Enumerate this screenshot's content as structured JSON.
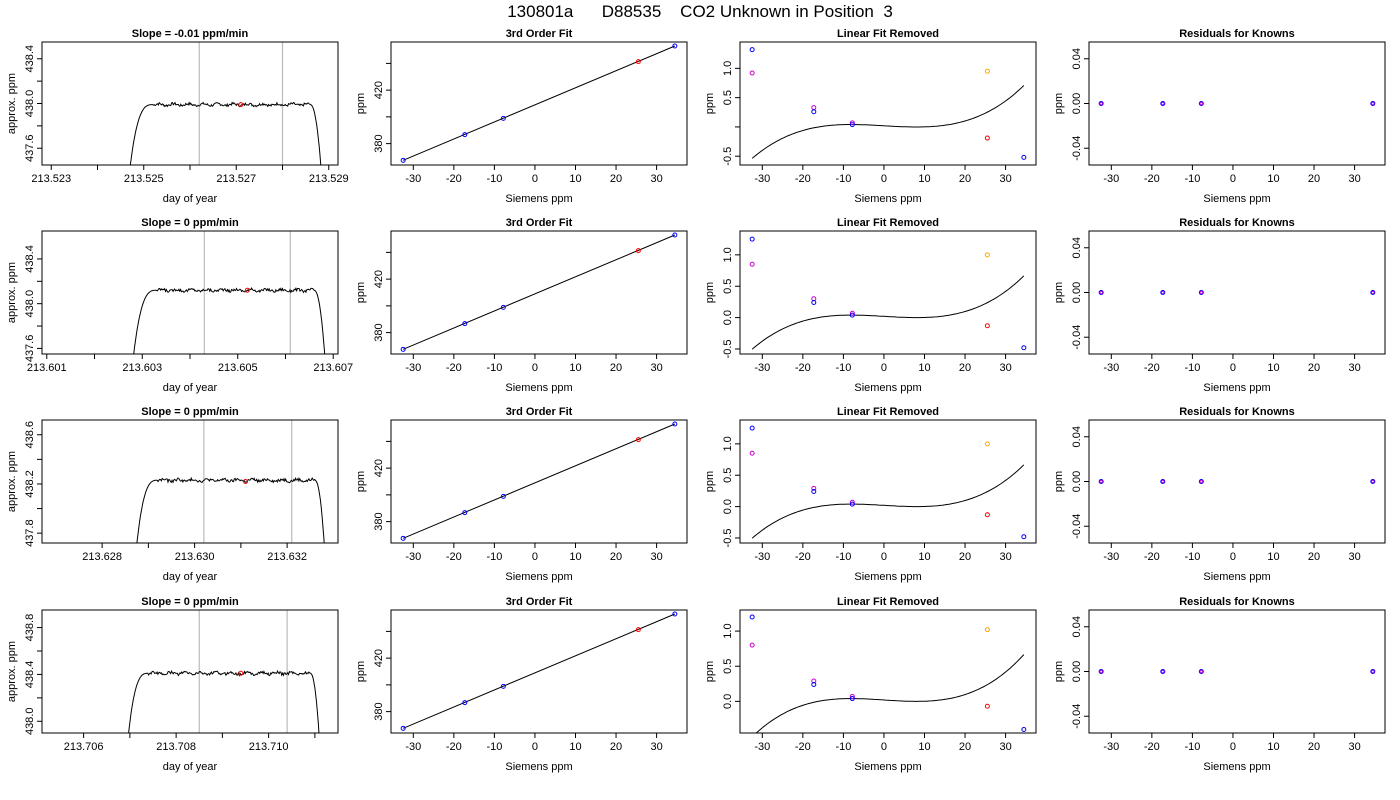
{
  "figure": {
    "title": "130801a      D88535    CO2 Unknown in Position  3"
  },
  "colors": {
    "line": "#000000",
    "fit_points_known": "#0000ff",
    "fit_points_unknown": "#ff0000",
    "raw_points": "#cc00cc",
    "unknown_marker": "#ffa500",
    "window_lines": "#bbbbbb"
  },
  "chart_data": [
    {
      "type": "line",
      "row": 0,
      "col": 0,
      "title": "Slope =  -0.01  ppm/min",
      "xlabel": "day of year",
      "ylabel": "approx. ppm",
      "xlim": [
        213.5228,
        213.5292
      ],
      "ylim": [
        437.45,
        438.55
      ],
      "xticks": [
        213.523,
        213.524,
        213.525,
        213.526,
        213.527,
        213.528,
        213.529
      ],
      "xtick_labels": [
        "213.523",
        "",
        "213.525",
        "",
        "213.527",
        "",
        "213.529"
      ],
      "yticks": [
        437.6,
        437.8,
        438.0,
        438.2,
        438.4
      ],
      "ytick_labels": [
        "437.6",
        "",
        "438.0",
        "",
        "438.4"
      ],
      "trace": {
        "x_start": 213.5246,
        "x_rise": 213.5252,
        "x_end": 213.5286,
        "x_fall": 213.5289,
        "y_base": 437.0,
        "y_plateau": 437.99,
        "noise": 0.012
      },
      "vlines": [
        213.5262,
        213.528
      ],
      "marker": {
        "x": 213.5271,
        "y": 437.99
      }
    },
    {
      "type": "scatter",
      "row": 0,
      "col": 1,
      "title": "3rd Order Fit",
      "xlabel": "Siemens ppm",
      "ylabel": "ppm",
      "xlim": [
        -35.5,
        37.5
      ],
      "ylim": [
        364,
        456
      ],
      "xticks": [
        -30,
        -20,
        -10,
        0,
        10,
        20,
        30
      ],
      "yticks": [
        380,
        400,
        420,
        440
      ],
      "ytick_labels": [
        "380",
        "",
        "420",
        ""
      ],
      "line": [
        [
          -32.5,
          367.5
        ],
        [
          34.5,
          453
        ]
      ],
      "known_points": [
        [
          -32.5,
          367.5
        ],
        [
          -17.3,
          386.7
        ],
        [
          -7.8,
          398.9
        ],
        [
          34.5,
          453
        ]
      ],
      "unknown_points": [
        [
          25.5,
          441.3
        ]
      ]
    },
    {
      "type": "scatter",
      "row": 0,
      "col": 2,
      "title": "Linear Fit Removed",
      "xlabel": "Siemens ppm",
      "ylabel": "ppm",
      "xlim": [
        -35.5,
        37.5
      ],
      "ylim": [
        -0.65,
        1.45
      ],
      "xticks": [
        -30,
        -20,
        -10,
        0,
        10,
        20,
        30
      ],
      "yticks": [
        -0.5,
        0.0,
        0.5,
        1.0
      ],
      "ytick_labels": [
        "-0.5",
        "",
        "0.5",
        "1.0"
      ],
      "curve_coeffs": [
        0.02,
        -0.00393,
        1e-06,
        2e-05
      ],
      "curve_range": [
        -32.5,
        34.5
      ],
      "known_points": [
        [
          -32.5,
          1.32
        ],
        [
          -17.3,
          0.26
        ],
        [
          -7.8,
          0.04
        ],
        [
          34.5,
          -0.52
        ]
      ],
      "raw_points": [
        [
          -32.5,
          0.92
        ],
        [
          -17.3,
          0.33
        ],
        [
          -7.8,
          0.07
        ]
      ],
      "unknown_points": [
        [
          25.5,
          -0.19
        ]
      ],
      "unknown_marker": [
        25.5,
        0.95
      ]
    },
    {
      "type": "scatter",
      "row": 0,
      "col": 3,
      "title": "Residuals for Knowns",
      "xlabel": "Siemens ppm",
      "ylabel": "ppm",
      "xlim": [
        -35.5,
        37.5
      ],
      "ylim": [
        -0.055,
        0.055
      ],
      "xticks": [
        -30,
        -20,
        -10,
        0,
        10,
        20,
        30
      ],
      "yticks": [
        -0.04,
        0.0,
        0.04
      ],
      "ytick_labels": [
        "-0.04",
        "0.00",
        "0.04"
      ],
      "points": [
        [
          -32.5,
          0
        ],
        [
          -17.3,
          0
        ],
        [
          -7.8,
          0
        ],
        [
          34.5,
          0
        ]
      ]
    },
    {
      "type": "line",
      "row": 1,
      "col": 0,
      "title": "Slope =  0  ppm/min",
      "xlabel": "day of year",
      "ylabel": "approx. ppm",
      "xlim": [
        213.6009,
        213.6071
      ],
      "ylim": [
        437.55,
        438.65
      ],
      "xticks": [
        213.601,
        213.602,
        213.603,
        213.604,
        213.605,
        213.606,
        213.607
      ],
      "xtick_labels": [
        "213.601",
        "",
        "213.603",
        "",
        "213.605",
        "",
        "213.607"
      ],
      "yticks": [
        437.6,
        437.8,
        438.0,
        438.2,
        438.4
      ],
      "ytick_labels": [
        "437.6",
        "",
        "438.0",
        "",
        "438.4"
      ],
      "trace": {
        "x_start": 213.6027,
        "x_rise": 213.6033,
        "x_end": 213.6066,
        "x_fall": 213.6069,
        "y_base": 437.0,
        "y_plateau": 438.12,
        "noise": 0.012
      },
      "vlines": [
        213.6043,
        213.6061
      ],
      "marker": {
        "x": 213.6052,
        "y": 438.12
      }
    },
    {
      "type": "scatter",
      "row": 1,
      "col": 1,
      "title": "3rd Order Fit",
      "xlabel": "Siemens ppm",
      "ylabel": "ppm",
      "xlim": [
        -35.5,
        37.5
      ],
      "ylim": [
        364,
        456
      ],
      "xticks": [
        -30,
        -20,
        -10,
        0,
        10,
        20,
        30
      ],
      "yticks": [
        380,
        400,
        420,
        440
      ],
      "ytick_labels": [
        "380",
        "",
        "420",
        ""
      ],
      "line": [
        [
          -32.5,
          367.5
        ],
        [
          34.5,
          453
        ]
      ],
      "known_points": [
        [
          -32.5,
          367.5
        ],
        [
          -17.3,
          386.7
        ],
        [
          -7.8,
          398.9
        ],
        [
          34.5,
          453
        ]
      ],
      "unknown_points": [
        [
          25.5,
          441.3
        ]
      ]
    },
    {
      "type": "scatter",
      "row": 1,
      "col": 2,
      "title": "Linear Fit Removed",
      "xlabel": "Siemens ppm",
      "ylabel": "ppm",
      "xlim": [
        -35.5,
        37.5
      ],
      "ylim": [
        -0.58,
        1.38
      ],
      "xticks": [
        -30,
        -20,
        -10,
        0,
        10,
        20,
        30
      ],
      "yticks": [
        -0.5,
        0.0,
        0.5,
        1.0
      ],
      "ytick_labels": [
        "-0.5",
        "0.0",
        "0.5",
        "1.0"
      ],
      "curve_coeffs": [
        0.02,
        -0.0037,
        1e-06,
        1.88e-05
      ],
      "curve_range": [
        -32.5,
        34.5
      ],
      "known_points": [
        [
          -32.5,
          1.25
        ],
        [
          -17.3,
          0.24
        ],
        [
          -7.8,
          0.04
        ],
        [
          34.5,
          -0.48
        ]
      ],
      "raw_points": [
        [
          -32.5,
          0.85
        ],
        [
          -17.3,
          0.3
        ],
        [
          -7.8,
          0.07
        ]
      ],
      "unknown_points": [
        [
          25.5,
          -0.13
        ]
      ],
      "unknown_marker": [
        25.5,
        1.0
      ]
    },
    {
      "type": "scatter",
      "row": 1,
      "col": 3,
      "title": "Residuals for Knowns",
      "xlabel": "Siemens ppm",
      "ylabel": "ppm",
      "xlim": [
        -35.5,
        37.5
      ],
      "ylim": [
        -0.055,
        0.055
      ],
      "xticks": [
        -30,
        -20,
        -10,
        0,
        10,
        20,
        30
      ],
      "yticks": [
        -0.04,
        0.0,
        0.04
      ],
      "ytick_labels": [
        "-0.04",
        "0.00",
        "0.04"
      ],
      "points": [
        [
          -32.5,
          0
        ],
        [
          -17.3,
          0
        ],
        [
          -7.8,
          0
        ],
        [
          34.5,
          0
        ]
      ]
    },
    {
      "type": "line",
      "row": 2,
      "col": 0,
      "title": "Slope =  0  ppm/min",
      "xlabel": "day of year",
      "ylabel": "approx. ppm",
      "xlim": [
        213.6267,
        213.6331
      ],
      "ylim": [
        437.72,
        438.72
      ],
      "xticks": [
        213.628,
        213.629,
        213.63,
        213.631,
        213.632
      ],
      "xtick_labels": [
        "213.628",
        "",
        "213.630",
        "",
        "213.632"
      ],
      "yticks": [
        437.8,
        438.0,
        438.2,
        438.4,
        438.6
      ],
      "ytick_labels": [
        "437.8",
        "",
        "438.2",
        "",
        "438.6"
      ],
      "trace": {
        "x_start": 213.6286,
        "x_rise": 213.6292,
        "x_end": 213.6326,
        "x_fall": 213.6329,
        "y_base": 437.0,
        "y_plateau": 438.23,
        "noise": 0.012
      },
      "vlines": [
        213.6302,
        213.6321
      ],
      "marker": {
        "x": 213.6311,
        "y": 438.22
      }
    },
    {
      "type": "scatter",
      "row": 2,
      "col": 1,
      "title": "3rd Order Fit",
      "xlabel": "Siemens ppm",
      "ylabel": "ppm",
      "xlim": [
        -35.5,
        37.5
      ],
      "ylim": [
        364,
        456
      ],
      "xticks": [
        -30,
        -20,
        -10,
        0,
        10,
        20,
        30
      ],
      "yticks": [
        380,
        400,
        420,
        440
      ],
      "ytick_labels": [
        "380",
        "",
        "420",
        ""
      ],
      "line": [
        [
          -32.5,
          367.5
        ],
        [
          34.5,
          453
        ]
      ],
      "known_points": [
        [
          -32.5,
          367.5
        ],
        [
          -17.3,
          386.7
        ],
        [
          -7.8,
          398.9
        ],
        [
          34.5,
          453
        ]
      ],
      "unknown_points": [
        [
          25.5,
          441.3
        ]
      ]
    },
    {
      "type": "scatter",
      "row": 2,
      "col": 2,
      "title": "Linear Fit Removed",
      "xlabel": "Siemens ppm",
      "ylabel": "ppm",
      "xlim": [
        -35.5,
        37.5
      ],
      "ylim": [
        -0.58,
        1.38
      ],
      "xticks": [
        -30,
        -20,
        -10,
        0,
        10,
        20,
        30
      ],
      "yticks": [
        -0.5,
        0.0,
        0.5,
        1.0
      ],
      "ytick_labels": [
        "-0.5",
        "0.0",
        "0.5",
        "1.0"
      ],
      "curve_coeffs": [
        0.02,
        -0.0037,
        1e-06,
        1.88e-05
      ],
      "curve_range": [
        -32.5,
        34.5
      ],
      "known_points": [
        [
          -32.5,
          1.25
        ],
        [
          -17.3,
          0.24
        ],
        [
          -7.8,
          0.04
        ],
        [
          34.5,
          -0.48
        ]
      ],
      "raw_points": [
        [
          -32.5,
          0.85
        ],
        [
          -17.3,
          0.29
        ],
        [
          -7.8,
          0.07
        ]
      ],
      "unknown_points": [
        [
          25.5,
          -0.13
        ]
      ],
      "unknown_marker": [
        25.5,
        1.0
      ]
    },
    {
      "type": "scatter",
      "row": 2,
      "col": 3,
      "title": "Residuals for Knowns",
      "xlabel": "Siemens ppm",
      "ylabel": "ppm",
      "xlim": [
        -35.5,
        37.5
      ],
      "ylim": [
        -0.055,
        0.055
      ],
      "xticks": [
        -30,
        -20,
        -10,
        0,
        10,
        20,
        30
      ],
      "yticks": [
        -0.04,
        0.0,
        0.04
      ],
      "ytick_labels": [
        "-0.04",
        "0.00",
        "0.04"
      ],
      "points": [
        [
          -32.5,
          0
        ],
        [
          -17.3,
          0
        ],
        [
          -7.8,
          0
        ],
        [
          34.5,
          0
        ]
      ]
    },
    {
      "type": "line",
      "row": 3,
      "col": 0,
      "title": "Slope =  0  ppm/min",
      "xlabel": "day of year",
      "ylabel": "approx. ppm",
      "xlim": [
        213.7051,
        213.7115
      ],
      "ylim": [
        437.9,
        438.95
      ],
      "xticks": [
        213.706,
        213.707,
        213.708,
        213.709,
        213.71,
        213.711
      ],
      "xtick_labels": [
        "213.706",
        "",
        "213.708",
        "",
        "213.710",
        ""
      ],
      "yticks": [
        438.0,
        438.2,
        438.4,
        438.6,
        438.8
      ],
      "ytick_labels": [
        "438.0",
        "",
        "438.4",
        "",
        "438.8"
      ],
      "trace": {
        "x_start": 213.7068,
        "x_rise": 213.7074,
        "x_end": 213.7109,
        "x_fall": 213.7112,
        "y_base": 437.0,
        "y_plateau": 438.41,
        "noise": 0.012
      },
      "vlines": [
        213.7085,
        213.7104
      ],
      "marker": {
        "x": 213.7094,
        "y": 438.41
      }
    },
    {
      "type": "scatter",
      "row": 3,
      "col": 1,
      "title": "3rd Order Fit",
      "xlabel": "Siemens ppm",
      "ylabel": "ppm",
      "xlim": [
        -35.5,
        37.5
      ],
      "ylim": [
        364,
        456
      ],
      "xticks": [
        -30,
        -20,
        -10,
        0,
        10,
        20,
        30
      ],
      "yticks": [
        380,
        400,
        420,
        440
      ],
      "ytick_labels": [
        "380",
        "",
        "420",
        ""
      ],
      "line": [
        [
          -32.5,
          367.5
        ],
        [
          34.5,
          453
        ]
      ],
      "known_points": [
        [
          -32.5,
          367.5
        ],
        [
          -17.3,
          386.7
        ],
        [
          -7.8,
          398.9
        ],
        [
          34.5,
          453
        ]
      ],
      "unknown_points": [
        [
          25.5,
          441.3
        ]
      ]
    },
    {
      "type": "scatter",
      "row": 3,
      "col": 2,
      "title": "Linear Fit Removed",
      "xlabel": "Siemens ppm",
      "ylabel": "ppm",
      "xlim": [
        -35.5,
        37.5
      ],
      "ylim": [
        -0.45,
        1.3
      ],
      "xticks": [
        -30,
        -20,
        -10,
        0,
        10,
        20,
        30
      ],
      "yticks": [
        0.0,
        0.5,
        1.0
      ],
      "ytick_labels": [
        "0.0",
        "0.5",
        "1.0"
      ],
      "curve_coeffs": [
        0.02,
        -0.0037,
        1e-06,
        1.88e-05
      ],
      "curve_range": [
        -32.5,
        34.5
      ],
      "known_points": [
        [
          -32.5,
          1.2
        ],
        [
          -17.3,
          0.24
        ],
        [
          -7.8,
          0.04
        ],
        [
          34.5,
          -0.4
        ]
      ],
      "raw_points": [
        [
          -32.5,
          0.8
        ],
        [
          -17.3,
          0.29
        ],
        [
          -7.8,
          0.07
        ]
      ],
      "unknown_points": [
        [
          25.5,
          -0.07
        ]
      ],
      "unknown_marker": [
        25.5,
        1.02
      ]
    },
    {
      "type": "scatter",
      "row": 3,
      "col": 3,
      "title": "Residuals for Knowns",
      "xlabel": "Siemens ppm",
      "ylabel": "ppm",
      "xlim": [
        -35.5,
        37.5
      ],
      "ylim": [
        -0.055,
        0.055
      ],
      "xticks": [
        -30,
        -20,
        -10,
        0,
        10,
        20,
        30
      ],
      "yticks": [
        -0.04,
        0.0,
        0.04
      ],
      "ytick_labels": [
        "-0.04",
        "0.00",
        "0.04"
      ],
      "points": [
        [
          -32.5,
          0
        ],
        [
          -17.3,
          0
        ],
        [
          -7.8,
          0
        ],
        [
          34.5,
          0
        ]
      ]
    }
  ]
}
